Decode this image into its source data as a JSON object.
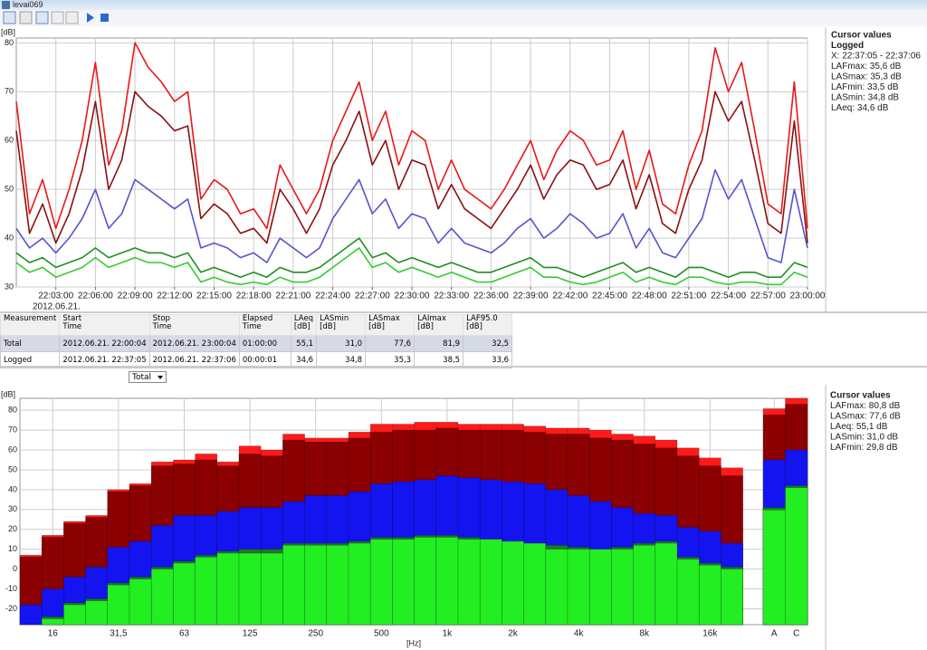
{
  "window": {
    "title": "levai069"
  },
  "chart_data": [
    {
      "type": "line",
      "ylabel": "[dB]",
      "date_label": "2012.06.21.",
      "legend_title": "Cursor values",
      "legend_subtitle": "Logged",
      "annotation": "X: 22:37:05 - 22:37:06",
      "ylim": [
        30,
        81
      ],
      "yticks": [
        30,
        40,
        50,
        60,
        70,
        80
      ],
      "grid": true,
      "x": [
        "22:00:00",
        "22:01:00",
        "22:02:00",
        "22:03:00",
        "22:04:00",
        "22:05:00",
        "22:06:00",
        "22:07:00",
        "22:08:00",
        "22:09:00",
        "22:10:00",
        "22:11:00",
        "22:12:00",
        "22:13:00",
        "22:14:00",
        "22:15:00",
        "22:16:00",
        "22:17:00",
        "22:18:00",
        "22:19:00",
        "22:20:00",
        "22:21:00",
        "22:22:00",
        "22:23:00",
        "22:24:00",
        "22:25:00",
        "22:26:00",
        "22:27:00",
        "22:28:00",
        "22:29:00",
        "22:30:00",
        "22:31:00",
        "22:32:00",
        "22:33:00",
        "22:34:00",
        "22:35:00",
        "22:36:00",
        "22:37:00",
        "22:38:00",
        "22:39:00",
        "22:40:00",
        "22:41:00",
        "22:42:00",
        "22:43:00",
        "22:44:00",
        "22:45:00",
        "22:46:00",
        "22:47:00",
        "22:48:00",
        "22:49:00",
        "22:50:00",
        "22:51:00",
        "22:52:00",
        "22:53:00",
        "22:54:00",
        "22:55:00",
        "22:56:00",
        "22:57:00",
        "22:58:00",
        "22:59:00",
        "23:00:00"
      ],
      "xticks": [
        "22:03:00",
        "22:06:00",
        "22:09:00",
        "22:12:00",
        "22:15:00",
        "22:18:00",
        "22:21:00",
        "22:24:00",
        "22:27:00",
        "22:30:00",
        "22:33:00",
        "22:36:00",
        "22:39:00",
        "22:42:00",
        "22:45:00",
        "22:48:00",
        "22:51:00",
        "22:54:00",
        "22:57:00",
        "23:00:00"
      ],
      "series": [
        {
          "name": "LAFmax: 35,6 dB",
          "color": "#e81818",
          "values": [
            68,
            45,
            52,
            42,
            50,
            60,
            76,
            55,
            62,
            80,
            75,
            72,
            68,
            70,
            48,
            52,
            50,
            45,
            46,
            42,
            55,
            50,
            45,
            50,
            60,
            66,
            72,
            60,
            66,
            55,
            62,
            60,
            50,
            56,
            50,
            48,
            46,
            50,
            55,
            60,
            52,
            58,
            62,
            60,
            55,
            56,
            62,
            50,
            58,
            47,
            45,
            55,
            62,
            79,
            70,
            76,
            62,
            47,
            45,
            72,
            42
          ]
        },
        {
          "name": "LASmax: 35,3 dB",
          "color": "#8b1010",
          "values": [
            62,
            41,
            47,
            39,
            45,
            54,
            68,
            50,
            56,
            70,
            67,
            65,
            62,
            63,
            44,
            47,
            45,
            41,
            42,
            39,
            50,
            46,
            41,
            46,
            55,
            60,
            66,
            55,
            60,
            50,
            56,
            55,
            46,
            51,
            46,
            44,
            42,
            46,
            50,
            55,
            48,
            53,
            56,
            55,
            50,
            51,
            56,
            46,
            53,
            43,
            41,
            50,
            56,
            70,
            64,
            68,
            56,
            43,
            41,
            64,
            39
          ]
        },
        {
          "name": "LAFmin: 33,5 dB",
          "color": "#33cc33",
          "values": [
            35,
            33,
            34,
            32,
            33,
            34,
            36,
            34,
            35,
            36,
            35,
            35,
            34,
            35,
            31,
            32,
            31,
            30.5,
            31,
            30.5,
            32,
            31,
            31,
            32,
            34,
            36,
            38,
            34,
            35,
            33,
            34,
            33,
            32,
            33,
            32,
            31,
            31,
            32,
            33,
            34,
            32,
            32,
            31,
            30.5,
            31,
            32,
            33,
            31,
            32,
            31,
            30.5,
            32,
            32,
            31,
            30.5,
            31,
            31,
            30.5,
            30.5,
            33,
            32
          ]
        },
        {
          "name": "LASmin: 34,8 dB",
          "color": "#1f8f1f",
          "values": [
            37,
            35,
            36,
            34,
            35,
            36,
            38,
            36,
            37,
            38,
            37,
            37,
            36,
            37,
            33,
            34,
            33,
            32,
            33,
            32,
            34,
            33,
            33,
            34,
            36,
            38,
            40,
            36,
            37,
            35,
            36,
            35,
            34,
            35,
            34,
            33,
            33,
            34,
            35,
            36,
            34,
            34,
            33,
            32,
            33,
            34,
            35,
            33,
            34,
            33,
            32,
            34,
            34,
            33,
            32,
            33,
            33,
            32,
            32,
            35,
            34
          ]
        },
        {
          "name": "LAeq: 34,6 dB",
          "color": "#5555cc",
          "values": [
            42,
            38,
            40,
            37,
            40,
            44,
            50,
            42,
            45,
            52,
            50,
            48,
            46,
            48,
            38,
            39,
            38,
            36,
            37,
            35,
            40,
            38,
            36,
            38,
            44,
            48,
            52,
            45,
            48,
            42,
            45,
            44,
            39,
            42,
            39,
            38,
            37,
            39,
            42,
            44,
            40,
            42,
            45,
            43,
            40,
            41,
            45,
            38,
            42,
            37,
            36,
            40,
            44,
            54,
            48,
            52,
            44,
            36,
            35,
            50,
            38
          ]
        }
      ]
    },
    {
      "type": "bar",
      "ylabel": "[dB]",
      "xlabel": "[Hz]",
      "legend_title": "Cursor values",
      "ylim": [
        -28,
        86
      ],
      "yticks": [
        -20,
        -10,
        0,
        10,
        20,
        30,
        40,
        50,
        60,
        70,
        80
      ],
      "grid": true,
      "categories": [
        null,
        "16",
        null,
        null,
        "31,5",
        null,
        null,
        "63",
        null,
        null,
        "125",
        null,
        null,
        "250",
        null,
        null,
        "500",
        null,
        null,
        "1k",
        null,
        null,
        "2k",
        null,
        null,
        "4k",
        null,
        null,
        "8k",
        null,
        null,
        "16k",
        null,
        "A",
        "C"
      ],
      "series": [
        {
          "name": "LAFmax: 80,8 dB",
          "color": "#ff1a1a",
          "values": [
            7,
            17,
            24,
            27,
            40,
            43,
            54,
            55,
            58,
            54,
            62,
            60,
            68,
            66,
            66,
            69,
            73,
            73,
            74,
            74,
            73,
            73,
            73,
            72,
            71,
            71,
            70,
            68,
            67,
            65,
            61,
            56,
            51,
            80.8,
            86
          ]
        },
        {
          "name": "LASmax: 77,6 dB",
          "color": "#8b0000",
          "values": [
            6,
            16,
            23,
            26,
            39,
            42,
            52,
            53,
            55,
            52,
            58,
            57,
            65,
            64,
            64,
            66,
            69,
            70,
            70,
            71,
            70,
            70,
            70,
            69,
            68,
            68,
            66,
            65,
            63,
            61,
            57,
            52,
            47,
            77.6,
            83
          ]
        },
        {
          "name": "LAeq: 55,1 dB",
          "color": "#1414f0",
          "values": [
            -18,
            -10,
            -4,
            1,
            11,
            14,
            22,
            27,
            27,
            29,
            31,
            31,
            34,
            37,
            37,
            39,
            43,
            44,
            45,
            47,
            46,
            45,
            44,
            43,
            40,
            37,
            34,
            31,
            28,
            27,
            21,
            19,
            13,
            55.1,
            60
          ]
        },
        {
          "name": "LASmin: 31,0 dB",
          "color": "#1e7a1e",
          "values": [
            -28,
            -24,
            -17,
            -15,
            -7,
            -4,
            1,
            4,
            7,
            9,
            10,
            10,
            13,
            13,
            13,
            14,
            16,
            16,
            17,
            17,
            16,
            15,
            14,
            13,
            12,
            11,
            10,
            11,
            13,
            14,
            6,
            3,
            1,
            31,
            42
          ]
        },
        {
          "name": "LAFmin: 29,8 dB",
          "color": "#22ee22",
          "values": [
            -28,
            -25,
            -18,
            -16,
            -8,
            -5,
            0,
            3,
            6,
            8,
            8,
            8,
            12,
            12,
            12,
            13,
            15,
            15,
            16,
            16,
            15,
            15,
            14,
            13,
            10,
            10,
            10,
            10,
            12,
            13,
            5,
            2,
            0,
            29.8,
            41
          ]
        }
      ]
    }
  ],
  "table": {
    "header": [
      "Measurement",
      "Start Time",
      "Stop Time",
      "Elapsed Time",
      "LAeq [dB]",
      "LASmin [dB]",
      "LASmax [dB]",
      "LAImax [dB]",
      "LAF95.0 [dB]"
    ],
    "rows": [
      [
        "Total",
        "2012.06.21. 22:00:04",
        "2012.06.21. 23:00:04",
        "01:00:00",
        "55,1",
        "31,0",
        "77,6",
        "81,9",
        "32,5"
      ],
      [
        "Logged",
        "2012.06.21. 22:37:05",
        "2012.06.21. 22:37:06",
        "00:00:01",
        "34,6",
        "34,8",
        "35,3",
        "38,5",
        "33,6"
      ]
    ]
  },
  "dropdown": "Total"
}
